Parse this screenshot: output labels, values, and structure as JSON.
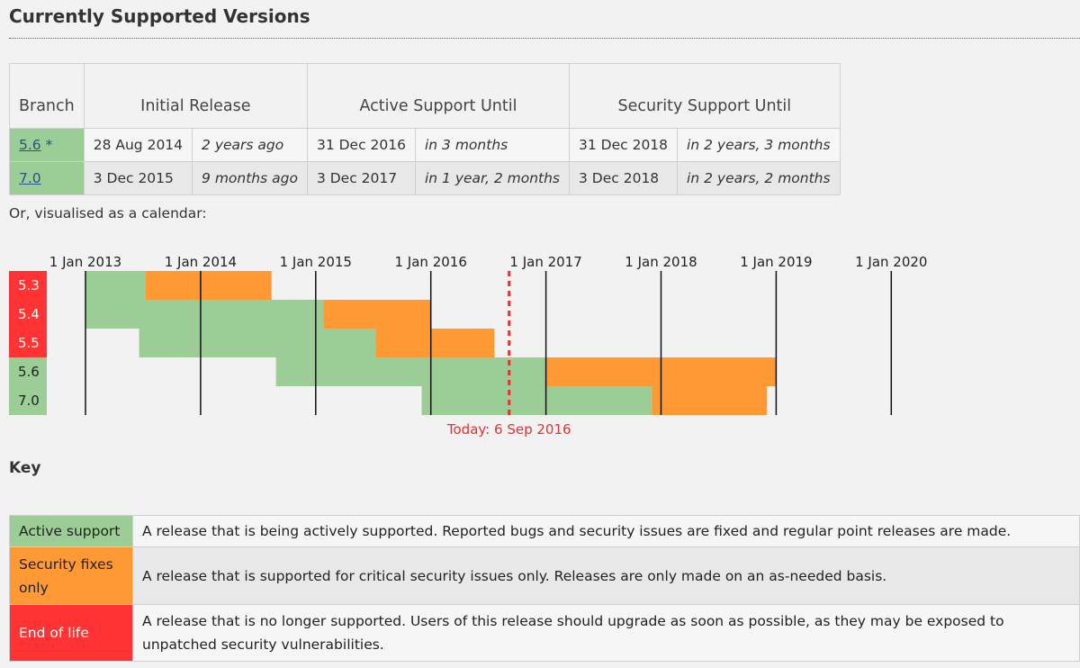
{
  "heading": "Currently Supported Versions",
  "table": {
    "headers": {
      "branch": "Branch",
      "initial_release": "Initial Release",
      "active_support": "Active Support Until",
      "security_support": "Security Support Until"
    },
    "rows": [
      {
        "branch": "5.6",
        "branch_note": " *",
        "initial_date": "28 Aug 2014",
        "initial_rel": "2 years ago",
        "active_date": "31 Dec 2016",
        "active_rel": "in 3 months",
        "security_date": "31 Dec 2018",
        "security_rel": "in 2 years, 3 months"
      },
      {
        "branch": "7.0",
        "branch_note": "",
        "initial_date": "3 Dec 2015",
        "initial_rel": "9 months ago",
        "active_date": "3 Dec 2017",
        "active_rel": "in 1 year, 2 months",
        "security_date": "3 Dec 2018",
        "security_rel": "in 2 years, 2 months"
      }
    ]
  },
  "calendar_intro": "Or, visualised as a calendar:",
  "calendar": {
    "year_labels": [
      "1 Jan 2013",
      "1 Jan 2014",
      "1 Jan 2015",
      "1 Jan 2016",
      "1 Jan 2017",
      "1 Jan 2018",
      "1 Jan 2019",
      "1 Jan 2020"
    ],
    "today_label": "Today: 6 Sep 2016",
    "today_date": "2016-09-06",
    "branches": [
      {
        "name": "5.3",
        "status": "eol",
        "release": "2013-01-01",
        "active_until": "2013-07-11",
        "security_until": "2014-08-14"
      },
      {
        "name": "5.4",
        "status": "eol",
        "release": "2013-01-01",
        "active_until": "2015-01-25",
        "security_until": "2015-12-31"
      },
      {
        "name": "5.5",
        "status": "eol",
        "release": "2013-06-20",
        "active_until": "2015-07-10",
        "security_until": "2016-07-21"
      },
      {
        "name": "5.6",
        "status": "active",
        "release": "2014-08-28",
        "active_until": "2016-12-31",
        "security_until": "2018-12-31"
      },
      {
        "name": "7.0",
        "status": "active",
        "release": "2015-12-03",
        "active_until": "2017-12-03",
        "security_until": "2018-12-03"
      }
    ]
  },
  "colors": {
    "active": "#9ccd96",
    "security": "#ff9933",
    "eol": "#ff3333",
    "today": "#e83030",
    "link": "#225588"
  },
  "key": {
    "title": "Key",
    "items": [
      {
        "label": "Active support",
        "description": "A release that is being actively supported. Reported bugs and security issues are fixed and regular point releases are made."
      },
      {
        "label": "Security fixes only",
        "description": "A release that is supported for critical security issues only. Releases are only made on an as-needed basis."
      },
      {
        "label": "End of life",
        "description": "A release that is no longer supported. Users of this release should upgrade as soon as possible, as they may be exposed to unpatched security vulnerabilities."
      }
    ]
  }
}
